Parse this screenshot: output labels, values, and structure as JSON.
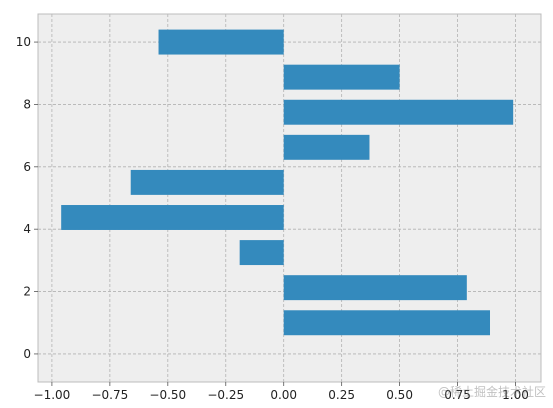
{
  "chart_data": {
    "type": "bar",
    "orientation": "horizontal",
    "title": "",
    "xlabel": "",
    "ylabel": "",
    "y": [
      1,
      2.125,
      3.25,
      4.375,
      5.5,
      6.625,
      7.75,
      8.875,
      10
    ],
    "values": [
      0.89,
      0.79,
      -0.19,
      -0.96,
      -0.66,
      0.37,
      0.99,
      0.5,
      -0.54
    ],
    "bar_height": 0.8,
    "xlim": [
      -1.06,
      1.11
    ],
    "ylim": [
      -0.9,
      10.9
    ],
    "xtick_values": [
      -1.0,
      -0.75,
      -0.5,
      -0.25,
      0.0,
      0.25,
      0.5,
      0.75,
      1.0
    ],
    "xtick_labels": [
      "−1.00",
      "−0.75",
      "−0.50",
      "−0.25",
      "0.00",
      "0.25",
      "0.50",
      "0.75",
      "1.00"
    ],
    "ytick_values": [
      0,
      2,
      4,
      6,
      8,
      10
    ],
    "ytick_labels": [
      "0",
      "2",
      "4",
      "6",
      "8",
      "10"
    ],
    "grid": true,
    "legend": "none"
  },
  "colors": {
    "figure_bg": "#ffffff",
    "axes_bg": "#eeeeee",
    "bar": "#348ABD",
    "grid": "#b2b2b2",
    "spine": "#bcbcbc"
  },
  "watermark": {
    "text": "@稀土掘金技术社区"
  }
}
